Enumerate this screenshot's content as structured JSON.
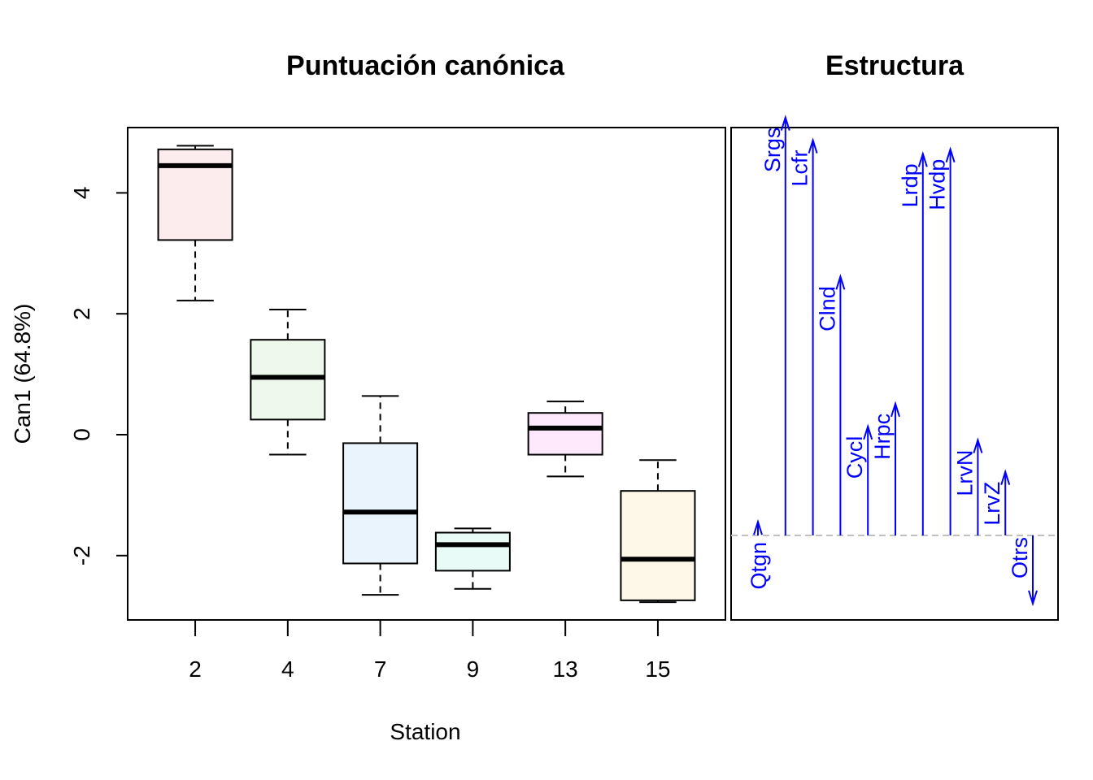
{
  "chart_data": [
    {
      "type": "boxplot",
      "title": "Puntuación canónica",
      "xlabel": "Station",
      "ylabel": "Can1 (64.8%)",
      "categories": [
        "2",
        "4",
        "7",
        "9",
        "13",
        "15"
      ],
      "ylim": [
        -3.0,
        5.2
      ],
      "yticks": [
        -2,
        0,
        2,
        4
      ],
      "ytick_labels": [
        "-2",
        "0",
        "2",
        "4"
      ],
      "grid": false,
      "boxes": [
        {
          "category": "2",
          "whisker_low": 2.22,
          "q1": 3.22,
          "median": 4.45,
          "q3": 4.72,
          "whisker_high": 4.78,
          "fill": "#fdecee"
        },
        {
          "category": "4",
          "whisker_low": -0.33,
          "q1": 0.25,
          "median": 0.95,
          "q3": 1.57,
          "whisker_high": 2.07,
          "fill": "#eef8ec"
        },
        {
          "category": "7",
          "whisker_low": -2.65,
          "q1": -2.13,
          "median": -1.28,
          "q3": -0.14,
          "whisker_high": 0.64,
          "fill": "#e9f4fd"
        },
        {
          "category": "9",
          "whisker_low": -2.55,
          "q1": -2.25,
          "median": -1.82,
          "q3": -1.62,
          "whisker_high": -1.55,
          "fill": "#e8fbf7"
        },
        {
          "category": "13",
          "whisker_low": -0.69,
          "q1": -0.33,
          "median": 0.11,
          "q3": 0.36,
          "whisker_high": 0.55,
          "fill": "#fde9fb"
        },
        {
          "category": "15",
          "whisker_low": -2.77,
          "q1": -2.74,
          "median": -2.06,
          "q3": -0.93,
          "whisker_high": -0.42,
          "fill": "#fdf8e8"
        }
      ]
    },
    {
      "type": "structure-arrows",
      "title": "Estructura",
      "arrow_color": "#0000ff",
      "baseline_color": "#c0c0c0",
      "variables": [
        {
          "name": "Qtgn",
          "value": 0.03
        },
        {
          "name": "Srgs",
          "value": 0.92
        },
        {
          "name": "Lcfr",
          "value": 0.87
        },
        {
          "name": "Clnd",
          "value": 0.57
        },
        {
          "name": "Cycl",
          "value": 0.24
        },
        {
          "name": "Hrpc",
          "value": 0.29
        },
        {
          "name": "Lrdp",
          "value": 0.84
        },
        {
          "name": "Hvdp",
          "value": 0.85
        },
        {
          "name": "LrvN",
          "value": 0.21
        },
        {
          "name": "LrvZ",
          "value": 0.14
        },
        {
          "name": "Otrs",
          "value": -0.15
        }
      ]
    }
  ]
}
